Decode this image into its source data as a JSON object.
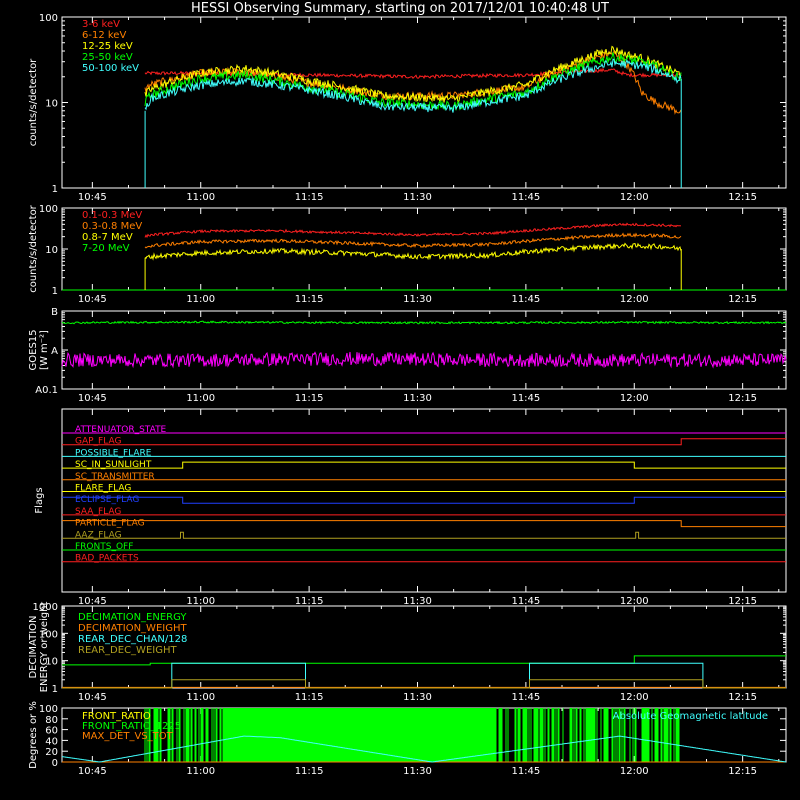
{
  "title": "HESSI Observing Summary, starting on 2017/12/01 10:40:48 UT",
  "colors": {
    "background": "#000000",
    "axes": "#ffffff",
    "red": "#ff2020",
    "orange": "#ff8000",
    "yellow": "#ffff00",
    "green": "#00ff00",
    "cyan": "#40ffff",
    "magenta": "#ff00ff",
    "blue": "#2040ff",
    "olive": "#b0a020"
  },
  "time_axis": {
    "start_min": 40.8,
    "end_min": 141,
    "tick_minutes": [
      45,
      60,
      75,
      90,
      105,
      120,
      135
    ],
    "tick_labels": [
      "10:45",
      "11:00",
      "11:15",
      "11:30",
      "11:45",
      "12:00",
      "12:15"
    ],
    "minor_step": 5
  },
  "chart_data": [
    {
      "type": "line",
      "id": "xray_low",
      "ylabel": "counts/s/detector",
      "log": true,
      "ylim": [
        1,
        100
      ],
      "ytick_values": [
        1,
        10,
        100
      ],
      "ytick_labels": [
        "1",
        "10",
        "100"
      ],
      "data_start": 52.3,
      "data_end": 126.5,
      "series": [
        {
          "name": "3-6 keV",
          "color": "#ff2020",
          "x": [
            52.3,
            53,
            60,
            75,
            90,
            105,
            112,
            117,
            119,
            121,
            123,
            126,
            126.5
          ],
          "values": [
            22,
            22,
            22,
            21,
            20,
            21,
            23,
            24,
            21,
            21,
            21,
            21,
            21
          ]
        },
        {
          "name": "6-12 keV",
          "color": "#ff8000",
          "x": [
            52.3,
            53,
            60,
            66,
            75,
            85,
            95,
            105,
            112,
            117,
            119,
            121,
            123,
            126,
            126.5
          ],
          "values": [
            14,
            16,
            22,
            23,
            17,
            12,
            12,
            15,
            28,
            38,
            28,
            13,
            10,
            8,
            8
          ]
        },
        {
          "name": "12-25 keV",
          "color": "#ffff00",
          "x": [
            52.3,
            53,
            60,
            66,
            75,
            85,
            95,
            105,
            112,
            117,
            119,
            121,
            123,
            126,
            126.5
          ],
          "values": [
            12,
            14,
            22,
            25,
            18,
            12,
            11,
            16,
            30,
            42,
            36,
            33,
            28,
            22,
            22
          ]
        },
        {
          "name": "25-50 keV",
          "color": "#00ff00",
          "x": [
            52.3,
            53,
            60,
            66,
            75,
            85,
            95,
            105,
            112,
            117,
            119,
            121,
            123,
            126,
            126.5
          ],
          "values": [
            10,
            12,
            19,
            21,
            15,
            10,
            9,
            13,
            25,
            34,
            32,
            30,
            26,
            20,
            20
          ]
        },
        {
          "name": "50-100 keV",
          "color": "#40ffff",
          "x": [
            52.3,
            53,
            60,
            66,
            75,
            85,
            95,
            105,
            112,
            117,
            119,
            121,
            123,
            126,
            126.5
          ],
          "values": [
            8,
            11,
            16,
            18,
            14,
            9,
            8.5,
            12,
            22,
            29,
            28,
            27,
            24,
            19,
            19
          ]
        }
      ]
    },
    {
      "type": "line",
      "id": "gamma",
      "ylabel": "counts/s/detector",
      "log": true,
      "ylim": [
        1,
        100
      ],
      "ytick_values": [
        1,
        10,
        100
      ],
      "ytick_labels": [
        "1",
        "10",
        "100"
      ],
      "data_start": 52.3,
      "data_end": 126.5,
      "series": [
        {
          "name": "0.1-0.3 MeV",
          "color": "#ff2020",
          "x": [
            52.3,
            53,
            60,
            70,
            80,
            90,
            100,
            110,
            118,
            124,
            126.5
          ],
          "values": [
            20,
            22,
            27,
            28,
            25,
            22,
            24,
            32,
            40,
            38,
            35
          ]
        },
        {
          "name": "0.3-0.8 MeV",
          "color": "#ff8000",
          "x": [
            52.3,
            53,
            60,
            70,
            80,
            90,
            100,
            110,
            118,
            124,
            126.5
          ],
          "values": [
            11,
            12,
            15,
            16,
            14,
            12,
            13,
            18,
            22,
            21,
            19
          ]
        },
        {
          "name": "0.8-7 MeV",
          "color": "#ffff00",
          "x": [
            52.3,
            53,
            60,
            70,
            80,
            90,
            100,
            110,
            118,
            124,
            126.5
          ],
          "values": [
            6,
            6.5,
            8,
            9,
            8,
            6.5,
            7,
            10,
            12,
            11.5,
            10
          ]
        },
        {
          "name": "7-20 MeV",
          "color": "#00ff00",
          "x": [
            40.8,
            141
          ],
          "values": [
            1,
            1
          ]
        }
      ]
    },
    {
      "type": "line",
      "id": "goes",
      "ylabel": "GOES15",
      "ylabel2": "[W m⁻²]",
      "log": true,
      "ylim": [
        1e-09,
        1e-07
      ],
      "ytick_values": [
        1e-09,
        1e-08,
        1e-07
      ],
      "ytick_labels": [
        "A0.1",
        "A",
        "B"
      ],
      "series": [
        {
          "name": "",
          "color": "#00ff00",
          "x": [
            40.8,
            60,
            80,
            100,
            120,
            141
          ],
          "values": [
            5e-08,
            5.2e-08,
            5e-08,
            5e-08,
            5.1e-08,
            5e-08
          ]
        },
        {
          "name": "",
          "color": "#ff00ff",
          "x": [
            40.8,
            60,
            80,
            100,
            120,
            141
          ],
          "values": [
            5.5e-09,
            5.5e-09,
            6e-09,
            5.5e-09,
            5.5e-09,
            5.5e-09
          ]
        }
      ]
    },
    {
      "type": "line",
      "id": "decimation",
      "ylabel": "DECIMATION",
      "ylabel2": "ENERGY or weight",
      "log": true,
      "ylim": [
        1,
        1000
      ],
      "ytick_values": [
        1,
        10,
        100,
        1000
      ],
      "ytick_labels": [
        "1",
        "10",
        "100",
        "1000"
      ],
      "series": [
        {
          "name": "DECIMATION_ENERGY",
          "color": "#00ff00",
          "x": [
            40.8,
            53,
            53,
            120,
            120,
            141
          ],
          "values": [
            7,
            7,
            8,
            8,
            15,
            15
          ]
        },
        {
          "name": "DECIMATION_WEIGHT",
          "color": "#ff8000",
          "x": [
            40.8,
            141
          ],
          "values": [
            1.05,
            1.05
          ]
        },
        {
          "name": "REAR_DEC_CHAN/128",
          "color": "#40ffff",
          "x": [
            40.8,
            56,
            56,
            74.5,
            74.5,
            105.5,
            105.5,
            129.5,
            129.5,
            141
          ],
          "values": [
            1,
            1,
            8,
            8,
            1,
            1,
            8,
            8,
            1,
            1
          ]
        },
        {
          "name": "REAR_DEC_WEIGHT",
          "color": "#b0a020",
          "x": [
            40.8,
            56,
            56,
            74.5,
            74.5,
            105.5,
            105.5,
            129.5,
            129.5,
            141
          ],
          "values": [
            1,
            1,
            2,
            2,
            1,
            1,
            2,
            2,
            1,
            1
          ]
        }
      ]
    },
    {
      "type": "line",
      "id": "ratios",
      "ylabel": "Degrees or %",
      "log": false,
      "ylim": [
        0,
        100
      ],
      "ytick_values": [
        0,
        20,
        40,
        60,
        80,
        100
      ],
      "ytick_labels": [
        "0",
        "20",
        "40",
        "60",
        "80",
        "100"
      ],
      "series": [
        {
          "name": "FRONT_RATIO",
          "color": "#ffff00",
          "x": [
            40.8,
            141
          ],
          "values": [
            0,
            0
          ]
        },
        {
          "name": "FRONT_RATIO_1225",
          "color": "#00ff00",
          "x": [
            52.3,
            126.5
          ],
          "values": [
            100,
            100
          ]
        },
        {
          "name": "MAX_DET_VS_TOT",
          "color": "#ff8000",
          "x": [
            40.8,
            141
          ],
          "values": [
            0,
            0
          ]
        },
        {
          "name": "Absolute Geomagnetic latitude",
          "color": "#40ffff",
          "x": [
            40.8,
            46,
            66,
            71,
            92,
            118,
            141
          ],
          "values": [
            10,
            0,
            48,
            45,
            0,
            48,
            0
          ]
        }
      ]
    }
  ],
  "flags": {
    "ylabel": "Flags",
    "items": [
      {
        "name": "ATTENUATOR_STATE",
        "color": "#ff00ff",
        "x": [
          40.8,
          141
        ],
        "values": [
          0,
          0
        ]
      },
      {
        "name": "GAP_FLAG",
        "color": "#ff2020",
        "x": [
          40.8,
          126.5,
          126.5,
          141
        ],
        "values": [
          0,
          0,
          1,
          1
        ]
      },
      {
        "name": "POSSIBLE_FLARE",
        "color": "#40ffff",
        "x": [
          40.8,
          141
        ],
        "values": [
          0,
          0
        ]
      },
      {
        "name": "SC_IN_SUNLIGHT",
        "color": "#ffff00",
        "x": [
          40.8,
          57.5,
          57.5,
          120,
          120,
          141
        ],
        "values": [
          0,
          0,
          1,
          1,
          0,
          0
        ]
      },
      {
        "name": "SC_TRANSMITTER",
        "color": "#ff8000",
        "x": [
          40.8,
          141
        ],
        "values": [
          0,
          0
        ]
      },
      {
        "name": "FLARE_FLAG",
        "color": "#ffff00",
        "x": [
          40.8,
          141
        ],
        "values": [
          0,
          0
        ]
      },
      {
        "name": "ECLIPSE_FLAG",
        "color": "#2040ff",
        "x": [
          40.8,
          57.5,
          57.5,
          120,
          120,
          141
        ],
        "values": [
          1,
          1,
          0,
          0,
          1,
          1
        ]
      },
      {
        "name": "SAA_FLAG",
        "color": "#ff2020",
        "x": [
          40.8,
          141
        ],
        "values": [
          0,
          0
        ]
      },
      {
        "name": "PARTICLE_FLAG",
        "color": "#ff8000",
        "x": [
          40.8,
          126.5,
          126.5,
          141
        ],
        "values": [
          1,
          1,
          0,
          0
        ]
      },
      {
        "name": "AAZ_FLAG",
        "color": "#b0a020",
        "x": [
          40.8,
          57.2,
          57.2,
          57.6,
          57.6,
          120.2,
          120.2,
          120.6,
          120.6,
          141
        ],
        "values": [
          0,
          0,
          1,
          1,
          0,
          0,
          1,
          1,
          0,
          0
        ]
      },
      {
        "name": "FRONTS_OFF",
        "color": "#00ff00",
        "x": [
          40.8,
          141
        ],
        "values": [
          0,
          0
        ]
      },
      {
        "name": "BAD_PACKETS",
        "color": "#ff2020",
        "x": [
          40.8,
          141
        ],
        "values": [
          0,
          0
        ]
      }
    ]
  }
}
